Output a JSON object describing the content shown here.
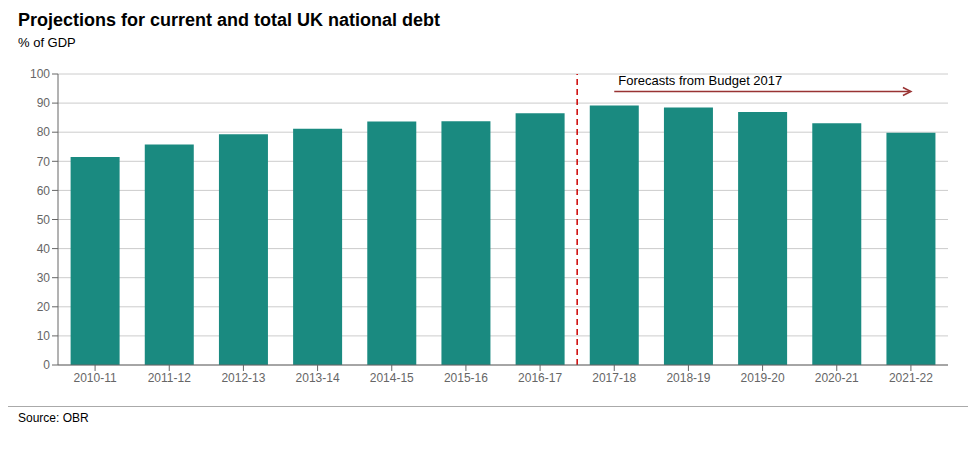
{
  "chart_data": {
    "type": "bar",
    "title": "Projections for current and total UK national debt",
    "ylabel": "% of GDP",
    "source": "Source: OBR",
    "categories": [
      "2010-11",
      "2011-12",
      "2012-13",
      "2013-14",
      "2014-15",
      "2015-16",
      "2016-17",
      "2017-18",
      "2018-19",
      "2019-20",
      "2020-21",
      "2021-22"
    ],
    "values": [
      71.5,
      75.8,
      79.3,
      81.2,
      83.7,
      83.8,
      86.5,
      89.2,
      88.5,
      86.9,
      83.1,
      79.8
    ],
    "color": "#1a8a80",
    "ylim": [
      0,
      100
    ],
    "yticks": [
      0,
      10,
      20,
      30,
      40,
      50,
      60,
      70,
      80,
      90,
      100
    ],
    "grid": true,
    "vertical_line": {
      "after": "2016-17",
      "color": "#cc0000",
      "line_style": "dashed"
    },
    "annotations": [
      {
        "text": "Forecasts from Budget 2017",
        "x_start": "2017-18",
        "x_end": "2021-22",
        "y": 94,
        "color": "#993333"
      }
    ]
  }
}
